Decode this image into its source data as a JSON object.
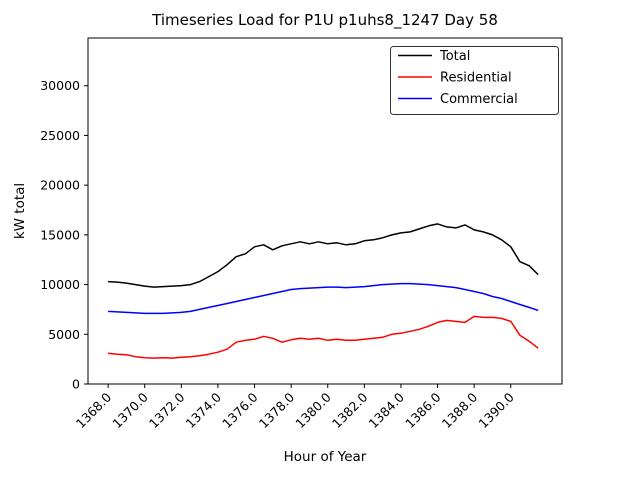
{
  "chart_data": {
    "type": "line",
    "title": "Timeseries Load for P1U p1uhs8_1247  Day 58",
    "xlabel": "Hour of Year",
    "ylabel": "kW total",
    "grid": false,
    "legend_position": "upper right",
    "xlim": [
      1366.9,
      1392.8
    ],
    "ylim": [
      0,
      34800
    ],
    "xticks": {
      "values": [
        1368,
        1370,
        1372,
        1374,
        1376,
        1378,
        1380,
        1382,
        1384,
        1386,
        1388,
        1390
      ],
      "labels": [
        "1368.0",
        "1370.0",
        "1372.0",
        "1374.0",
        "1376.0",
        "1378.0",
        "1380.0",
        "1382.0",
        "1384.0",
        "1386.0",
        "1388.0",
        "1390.0"
      ]
    },
    "yticks": {
      "values": [
        0,
        5000,
        10000,
        15000,
        20000,
        25000,
        30000
      ],
      "labels": [
        "0",
        "5000",
        "10000",
        "15000",
        "20000",
        "25000",
        "30000"
      ]
    },
    "x": [
      1368.0,
      1368.5,
      1369.0,
      1369.5,
      1370.0,
      1370.5,
      1371.0,
      1371.5,
      1372.0,
      1372.5,
      1373.0,
      1373.5,
      1374.0,
      1374.5,
      1375.0,
      1375.5,
      1376.0,
      1376.5,
      1377.0,
      1377.5,
      1378.0,
      1378.5,
      1379.0,
      1379.5,
      1380.0,
      1380.5,
      1381.0,
      1381.5,
      1382.0,
      1382.5,
      1383.0,
      1383.5,
      1384.0,
      1384.5,
      1385.0,
      1385.5,
      1386.0,
      1386.5,
      1387.0,
      1387.5,
      1388.0,
      1388.5,
      1389.0,
      1389.5,
      1390.0,
      1390.5,
      1391.0,
      1391.5
    ],
    "series": [
      {
        "name": "Total",
        "color": "#000000",
        "values": [
          10300,
          10250,
          10150,
          10000,
          9850,
          9750,
          9800,
          9850,
          9900,
          10000,
          10300,
          10800,
          11300,
          12000,
          12800,
          13100,
          13800,
          14000,
          13500,
          13900,
          14100,
          14300,
          14100,
          14300,
          14100,
          14200,
          14000,
          14100,
          14400,
          14500,
          14700,
          15000,
          15200,
          15300,
          15600,
          15900,
          16100,
          15800,
          15700,
          16000,
          15500,
          15300,
          15000,
          14500,
          13800,
          12300,
          11900,
          11000
        ]
      },
      {
        "name": "Residential",
        "color": "#ff0000",
        "values": [
          3100,
          3000,
          2950,
          2750,
          2650,
          2600,
          2650,
          2600,
          2700,
          2750,
          2850,
          3000,
          3200,
          3500,
          4200,
          4400,
          4500,
          4800,
          4600,
          4200,
          4450,
          4600,
          4500,
          4600,
          4400,
          4500,
          4400,
          4400,
          4500,
          4600,
          4700,
          5000,
          5100,
          5300,
          5500,
          5800,
          6200,
          6400,
          6300,
          6200,
          6800,
          6700,
          6700,
          6600,
          6300,
          4900,
          4300,
          3600
        ]
      },
      {
        "name": "Commercial",
        "color": "#0000ff",
        "values": [
          7300,
          7250,
          7200,
          7150,
          7100,
          7100,
          7100,
          7150,
          7200,
          7300,
          7500,
          7700,
          7900,
          8100,
          8300,
          8500,
          8700,
          8900,
          9100,
          9300,
          9500,
          9600,
          9650,
          9700,
          9750,
          9750,
          9700,
          9750,
          9800,
          9900,
          10000,
          10050,
          10100,
          10100,
          10050,
          10000,
          9900,
          9800,
          9700,
          9500,
          9300,
          9100,
          8800,
          8600,
          8300,
          8000,
          7700,
          7400
        ]
      }
    ]
  }
}
